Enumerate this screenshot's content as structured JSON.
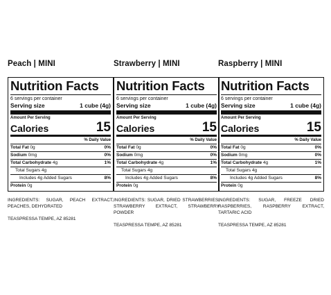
{
  "panels": [
    {
      "title": "Peach | MINI",
      "heading": "Nutrition Facts",
      "servings_per_container": "6 servings per container",
      "serving_size_label": "Serving size",
      "serving_size_value": "1 cube (4g)",
      "amount_per_serving": "Amount Per Serving",
      "calories_label": "Calories",
      "calories_value": "15",
      "daily_value_header": "% Daily Value",
      "total_fat_label": "Total Fat",
      "total_fat_amount": "0g",
      "total_fat_pct": "0%",
      "sodium_label": "Sodium",
      "sodium_amount": "0mg",
      "sodium_pct": "0%",
      "total_carb_label": "Total Carbohydrate",
      "total_carb_amount": "4g",
      "total_carb_pct": "1%",
      "total_sugars": "Total Sugars 4g",
      "added_sugars": "Includes 4g Added Sugars",
      "added_sugars_pct": "8%",
      "protein_label": "Protein",
      "protein_amount": "0g",
      "ingredients": "INGREDIENTS: SUGAR, PEACH EXTRACT, PEACHES, DEHYDRATED",
      "manufacturer": "TEASPRESSA TEMPE, AZ 85281"
    },
    {
      "title": "Strawberry | MINI",
      "heading": "Nutrition Facts",
      "servings_per_container": "6 servings per container",
      "serving_size_label": "Serving size",
      "serving_size_value": "1 cube (4g)",
      "amount_per_serving": "Amount Per Serving",
      "calories_label": "Calories",
      "calories_value": "15",
      "daily_value_header": "% Daily Value",
      "total_fat_label": "Total Fat",
      "total_fat_amount": "0g",
      "total_fat_pct": "0%",
      "sodium_label": "Sodium",
      "sodium_amount": "0mg",
      "sodium_pct": "0%",
      "total_carb_label": "Total Carbohydrate",
      "total_carb_amount": "4g",
      "total_carb_pct": "1%",
      "total_sugars": "Total Sugars 4g",
      "added_sugars": "Includes 4g Added Sugars",
      "added_sugars_pct": "8%",
      "protein_label": "Protein",
      "protein_amount": "0g",
      "ingredients": "INGREDIENTS: SUGAR, DRIED STRAWBERRIES, STRAWBERRY EXTRACT, STRAWBERRY POWDER",
      "manufacturer": "TEASPRESSA TEMPE, AZ 85281"
    },
    {
      "title": "Raspberry | MINI",
      "heading": "Nutrition Facts",
      "servings_per_container": "6 servings per container",
      "serving_size_label": "Serving size",
      "serving_size_value": "1 cube (4g)",
      "amount_per_serving": "Amount Per Serving",
      "calories_label": "Calories",
      "calories_value": "15",
      "daily_value_header": "% Daily Value",
      "total_fat_label": "Total Fat",
      "total_fat_amount": "0g",
      "total_fat_pct": "0%",
      "sodium_label": "Sodium",
      "sodium_amount": "0mg",
      "sodium_pct": "0%",
      "total_carb_label": "Total Carbohydrate",
      "total_carb_amount": "4g",
      "total_carb_pct": "1%",
      "total_sugars": "Total Sugars 4g",
      "added_sugars": "Includes 4g Added Sugars",
      "added_sugars_pct": "8%",
      "protein_label": "Protein",
      "protein_amount": "0g",
      "ingredients": "INGREDIENTS: SUGAR, FREEZE DRIED RASPBERRIES, RASPBERRY EXTRACT, TARTARIC ACID",
      "manufacturer": "TEASPRESSA TEMPE, AZ 85281"
    }
  ]
}
